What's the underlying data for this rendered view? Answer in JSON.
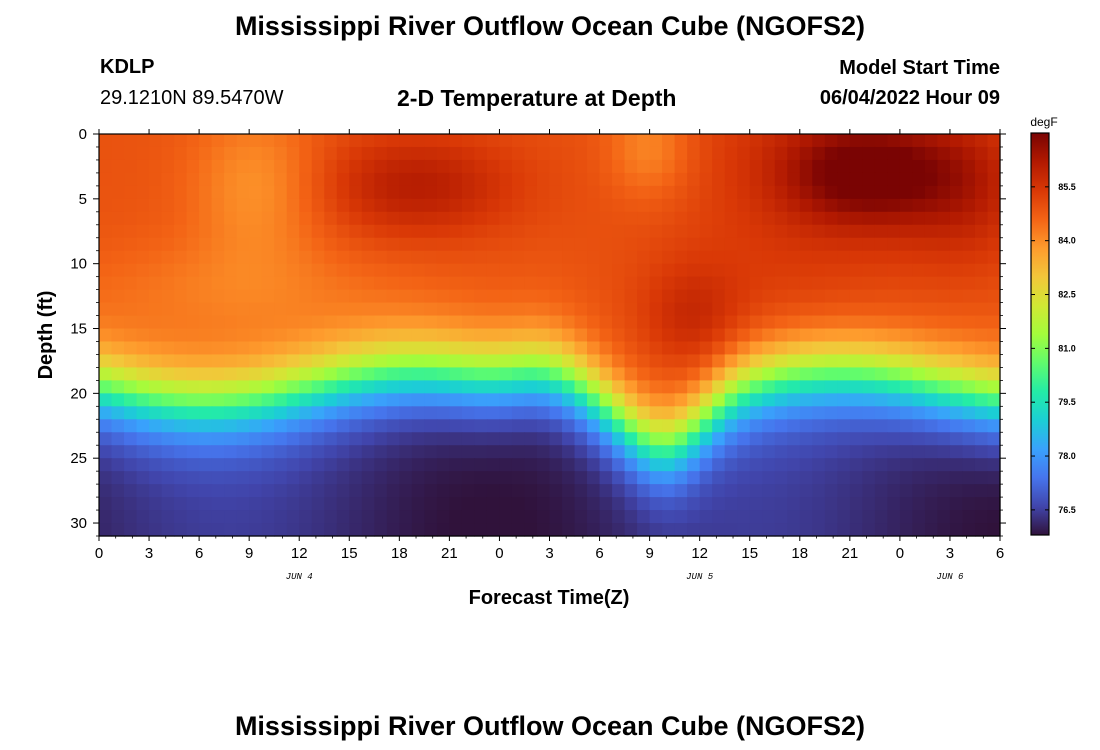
{
  "page": {
    "title": "Mississippi River Outflow Ocean Cube (NGOFS2)",
    "title_bottom": "Mississippi River Outflow Ocean Cube (NGOFS2)",
    "station_id": "KDLP",
    "coordinates": "29.1210N  89.5470W",
    "subtitle": "2-D Temperature at Depth",
    "model_start_label": "Model Start Time",
    "model_start_value": "06/04/2022 Hour 09"
  },
  "chart_data": {
    "type": "heatmap",
    "title": "2-D Temperature at Depth",
    "xlabel": "Forecast Time(Z)",
    "ylabel": "Depth (ft)",
    "x_tick_labels": [
      "0",
      "3",
      "6",
      "9",
      "12",
      "15",
      "18",
      "21",
      "0",
      "3",
      "6",
      "9",
      "12",
      "15",
      "18",
      "21",
      "0",
      "3",
      "6"
    ],
    "x_range_hours": [
      0,
      54
    ],
    "date_labels": [
      {
        "label": "JUN 4",
        "hour": 12
      },
      {
        "label": "JUN 5",
        "hour": 36
      },
      {
        "label": "JUN 6",
        "hour": 51
      }
    ],
    "y_ticks": [
      0,
      5,
      10,
      15,
      20,
      25,
      30
    ],
    "ylim": [
      0,
      31
    ],
    "y_inverted": true,
    "colorbar": {
      "unit": "degF",
      "ticks": [
        76.5,
        78.0,
        79.5,
        81.0,
        82.5,
        84.0,
        85.5
      ],
      "tick_labels": [
        "76.5",
        "78.0",
        "79.5",
        "81.0",
        "82.5",
        "84.0",
        "85.5"
      ],
      "range": [
        75.8,
        87.0
      ],
      "colors": [
        "#30123b",
        "#4145ab",
        "#4675ed",
        "#39a2fc",
        "#1bcfd4",
        "#24eca6",
        "#61fc6c",
        "#a4fc3b",
        "#d1e834",
        "#f3c63a",
        "#fe9b2d",
        "#f36315",
        "#d93806",
        "#b11901",
        "#7a0403"
      ]
    },
    "temperature_profile_description": "warm mixed layer 84-86 degF above ~15-20 ft, thermocline deepening near hour 33-36, cold bottom water 76-78 degF near 30 ft"
  }
}
